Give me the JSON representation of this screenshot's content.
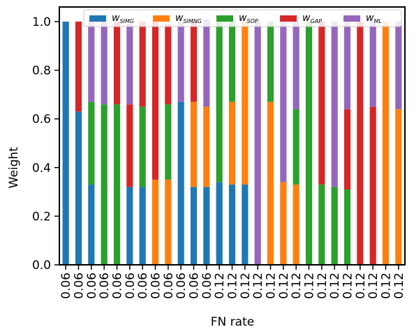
{
  "chart_data": {
    "type": "stacked_bar",
    "xlabel": "FN rate",
    "ylabel": "Weight",
    "categories": [
      "0.06",
      "0.06",
      "0.06",
      "0.06",
      "0.06",
      "0.06",
      "0.06",
      "0.06",
      "0.06",
      "0.06",
      "0.06",
      "0.06",
      "0.12",
      "0.12",
      "0.12",
      "0.12",
      "0.12",
      "0.12",
      "0.12",
      "0.12",
      "0.12",
      "0.12",
      "0.12",
      "0.12",
      "0.12",
      "0.12",
      "0.12"
    ],
    "series": [
      {
        "name": "wSIMG",
        "color": "#1f77b4",
        "values": [
          1,
          0.63,
          0.33,
          0,
          0,
          0.32,
          0.32,
          0,
          0,
          0.67,
          0.32,
          0.32,
          0.34,
          0.33,
          0.33,
          0,
          0,
          0,
          0,
          0,
          0,
          0,
          0,
          0,
          0,
          0,
          0
        ]
      },
      {
        "name": "wSIMNG",
        "color": "#ff7f0e",
        "values": [
          0,
          0,
          0,
          0,
          0,
          0,
          0,
          0.35,
          0.35,
          0,
          0.35,
          0.33,
          0,
          0.34,
          0.67,
          0,
          0.67,
          0.34,
          0.33,
          0,
          0,
          0,
          0,
          0,
          0,
          1,
          0.64
        ]
      },
      {
        "name": "wSOP",
        "color": "#2ca02c",
        "values": [
          0,
          0,
          0.34,
          0.66,
          0.66,
          0,
          0.33,
          0,
          0.31,
          0,
          0,
          0,
          0.66,
          0.33,
          0,
          0,
          0.33,
          0,
          0.31,
          1,
          0.33,
          0.32,
          0.31,
          0,
          0,
          0,
          0
        ]
      },
      {
        "name": "wGAP",
        "color": "#d62728",
        "values": [
          0,
          0.37,
          0,
          0,
          0.34,
          0.34,
          0.35,
          0.65,
          0.33,
          0,
          0.33,
          0,
          0,
          0,
          0,
          0,
          0,
          0,
          0,
          0,
          0.67,
          0,
          0.33,
          1,
          0.65,
          0,
          0
        ]
      },
      {
        "name": "wML",
        "color": "#9467bd",
        "values": [
          0,
          0,
          0.33,
          0.34,
          0,
          0.33,
          0,
          0,
          0,
          0.33,
          0,
          0.36,
          0,
          0,
          0,
          1,
          0,
          0.66,
          0.36,
          0,
          0,
          0.68,
          0.37,
          0,
          0.35,
          0,
          0.36
        ]
      }
    ],
    "ylim": [
      0,
      1.06
    ],
    "yticks": [
      {
        "value": 0,
        "label": "0.0"
      },
      0.2,
      0.4,
      0.6,
      0.8,
      {
        "value": 1,
        "label": "1.0"
      }
    ],
    "legend": "top"
  }
}
